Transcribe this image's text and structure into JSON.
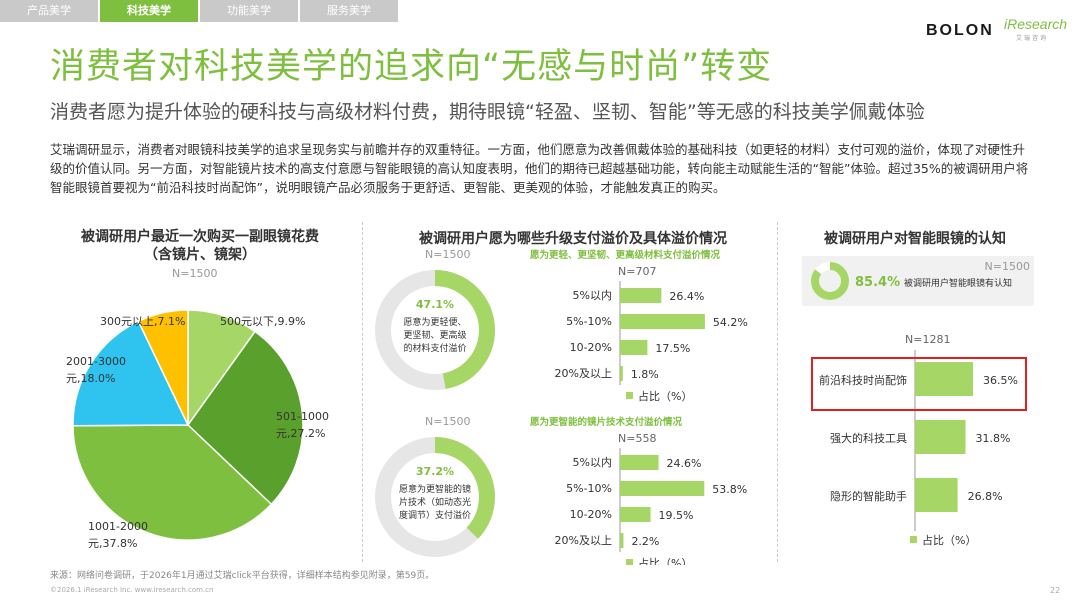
{
  "tabs": [
    {
      "label": "产品美学"
    },
    {
      "label": "科技美学"
    },
    {
      "label": "功能美学"
    },
    {
      "label": "服务美学"
    }
  ],
  "logos": {
    "bolon": "BOLON",
    "iresearch": "iResearch",
    "iresearch_sub": "艾瑞咨询"
  },
  "title": "消费者对科技美学的追求向“无感与时尚”转变",
  "subtitle": "消费者愿为提升体验的硬科技与高级材料付费，期待眼镜“轻盈、坚韧、智能”等无感的科技美学佩戴体验",
  "intro": "艾瑞调研显示，消费者对眼镜科技美学的追求呈现务实与前瞻并存的双重特征。一方面，他们愿意为改善佩戴体验的基础科技（如更轻的材料）支付可观的溢价，体现了对硬性升级的价值认同。另一方面，对智能镜片技术的高支付意愿与智能眼镜的高认知度表明，他们的期待已超越基础功能，转向能主动赋能生活的“智能”体验。超过35%的被调研用户将智能眼镜首要视为“前沿科技时尚配饰”，说明眼镜产品必须服务于更舒适、更智能、更美观的体验，才能触发真正的购买。",
  "colors": {
    "green": "#7fbf3f",
    "dark_green": "#5aa02c",
    "light_green": "#a6d665",
    "cyan": "#2ec4ef",
    "yellow": "#ffc000",
    "grey_ring": "#e6e6e6",
    "red_box": "#e02020"
  },
  "chart_data": [
    {
      "type": "pie",
      "title": "被调研用户最近一次购买一副眼镜花费（含镜片、镜架）",
      "title_line1": "被调研用户最近一次购买一副眼镜花费",
      "title_line2": "（含镜片、镜架）",
      "n": "N=1500",
      "slices": [
        {
          "label": "500元以下",
          "value": 9.9,
          "text1": "500元以下,9.9%",
          "text2": "",
          "color": "#a6d665"
        },
        {
          "label": "501-1000元",
          "value": 27.2,
          "text1": "501-1000",
          "text2": "元,27.2%",
          "color": "#5aa02c"
        },
        {
          "label": "1001-2000元",
          "value": 37.8,
          "text1": "1001-2000",
          "text2": "元,37.8%",
          "color": "#7fbf3f"
        },
        {
          "label": "2001-3000元",
          "value": 18.0,
          "text1": "2001-3000",
          "text2": "元,18.0%",
          "color": "#2ec4ef"
        },
        {
          "label": "300元以上",
          "value": 7.1,
          "text1": "300元以上,7.1%",
          "text2": "",
          "color": "#ffc000"
        }
      ]
    },
    {
      "type": "bar",
      "title": "被调研用户愿为哪些升级支付溢价及具体溢价情况",
      "n": "N=1500",
      "donut": {
        "value": 47.1,
        "value_label": "47.1%",
        "text": [
          "愿意为更轻便、",
          "更坚韧、更高级",
          "的材料支付溢价"
        ]
      },
      "header": "愿为更轻、更坚韧、更高级材料支付溢价情况",
      "sub_n": "N=707",
      "categories": [
        "5%以内",
        "5%-10%",
        "10-20%",
        "20%及以上"
      ],
      "values": [
        26.4,
        54.2,
        17.5,
        1.8
      ],
      "value_labels": [
        "26.4%",
        "54.2%",
        "17.5%",
        "1.8%"
      ],
      "legend": "占比（%）"
    },
    {
      "type": "bar",
      "n": "N=1500",
      "donut": {
        "value": 37.2,
        "value_label": "37.2%",
        "text": [
          "愿意为更智能的镜",
          "片技术（如动态光",
          "度调节）支付溢价"
        ]
      },
      "header": "愿为更智能的镜片技术支付溢价情况",
      "sub_n": "N=558",
      "categories": [
        "5%以内",
        "5%-10%",
        "10-20%",
        "20%及以上"
      ],
      "values": [
        24.6,
        53.8,
        19.5,
        2.2
      ],
      "value_labels": [
        "24.6%",
        "53.8%",
        "19.5%",
        "2.2%"
      ],
      "legend": "占比（%）"
    },
    {
      "type": "bar",
      "title": "被调研用户对智能眼镜的认知",
      "n": "N=1500",
      "awareness": {
        "value": 85.4,
        "value_label": "85.4%",
        "text": "被调研用户智能眼镜有认知"
      },
      "sub_n": "N=1281",
      "categories": [
        "前沿科技时尚配饰",
        "强大的科技工具",
        "隐形的智能助手"
      ],
      "values": [
        36.5,
        31.8,
        26.8
      ],
      "value_labels": [
        "36.5%",
        "31.8%",
        "26.8%"
      ],
      "highlight_index": 0,
      "legend": "占比（%）"
    }
  ],
  "footer": {
    "source": "来源：网络问卷调研，于2026年1月通过艾瑞click平台获得，详细样本结构参见附录，第59页。",
    "copyright": "©2026.1 iResearch Inc.                    www.iresearch.com.cn",
    "page": "22"
  }
}
